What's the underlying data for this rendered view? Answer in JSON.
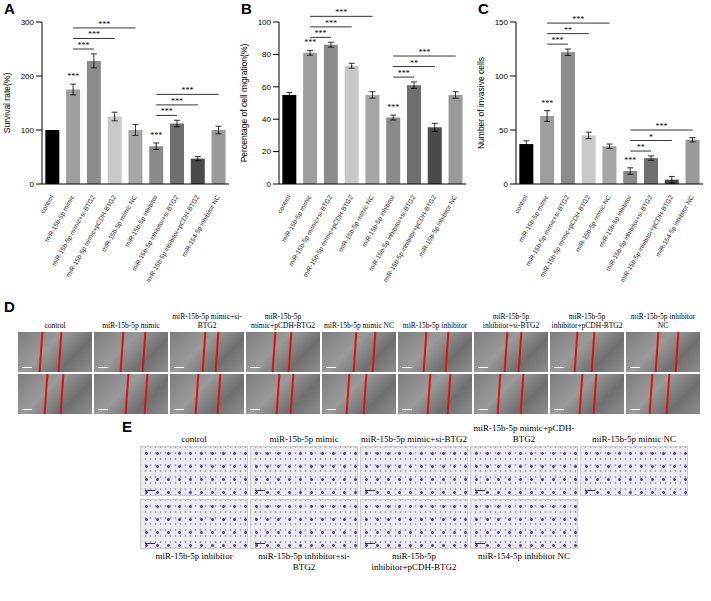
{
  "chart_data": [
    {
      "type": "bar",
      "panel": "A",
      "y_label": "Survival rate(%)",
      "categories": [
        "control",
        "miR-15b-5p mimic",
        "miR-15b-5p mimic+si-BTG2",
        "miR-15b-5p mimic+pCDH-BTG2",
        "miR-15b-5p mimic NC",
        "miR-15b-5p inhibitor",
        "miR-15b-5p inhibitor+si-BTG2",
        "miR-15b-5p inhibitor+pCDH-BTG2",
        "miR-154-5p inhibitor NC"
      ],
      "values": [
        100,
        175,
        228,
        125,
        100,
        70,
        112,
        47,
        100
      ],
      "errors": [
        0,
        10,
        13,
        8,
        10,
        6,
        6,
        4,
        7
      ],
      "colors": [
        "#000000",
        "#9e9e9e",
        "#8c8c8c",
        "#c8c8c8",
        "#a6a6a6",
        "#8a8a8a",
        "#6e6e6e",
        "#4a4a4a",
        "#9a9a9a"
      ],
      "ylim": [
        0,
        300
      ],
      "yticks": [
        0,
        100,
        200,
        300
      ],
      "annotations": [
        {
          "index": 1,
          "label": "***"
        },
        {
          "index": 5,
          "label": "***"
        }
      ],
      "comparisons": [
        {
          "from": 1,
          "to": 2,
          "label": "***"
        },
        {
          "from": 1,
          "to": 3,
          "label": "***"
        },
        {
          "from": 1,
          "to": 4,
          "label": "***"
        },
        {
          "from": 5,
          "to": 6,
          "label": "***"
        },
        {
          "from": 5,
          "to": 7,
          "label": "***"
        },
        {
          "from": 5,
          "to": 8,
          "label": "***"
        }
      ]
    },
    {
      "type": "bar",
      "panel": "B",
      "y_label": "Percentage of cell migration(%)",
      "categories": [
        "control",
        "miR-15b-5p mimic",
        "miR-15b-5p mimic+si-BTG2",
        "miR-15b-5p mimic+pCDH-BTG2",
        "miR-15b-5p mimic NC",
        "miR-15b-5p inhibitor",
        "miR-15b-5p inhibitor+si-BTG2",
        "miR-15b-5p inhibitor+pCDH-BTG2",
        "miR-15b-5p inhibitor NC"
      ],
      "values": [
        55,
        81,
        86,
        73,
        55,
        41,
        61,
        35,
        55
      ],
      "errors": [
        1.5,
        1.5,
        1.5,
        1.5,
        2,
        1.5,
        2,
        2.5,
        2
      ],
      "colors": [
        "#000000",
        "#9e9e9e",
        "#8c8c8c",
        "#c8c8c8",
        "#a6a6a6",
        "#8a8a8a",
        "#6e6e6e",
        "#4a4a4a",
        "#9a9a9a"
      ],
      "ylim": [
        0,
        100
      ],
      "yticks": [
        0,
        20,
        40,
        60,
        80,
        100
      ],
      "annotations": [
        {
          "index": 1,
          "label": "***"
        },
        {
          "index": 5,
          "label": "***"
        }
      ],
      "comparisons": [
        {
          "from": 1,
          "to": 2,
          "label": "***"
        },
        {
          "from": 1,
          "to": 3,
          "label": "***"
        },
        {
          "from": 1,
          "to": 4,
          "label": "***"
        },
        {
          "from": 5,
          "to": 6,
          "label": "***"
        },
        {
          "from": 5,
          "to": 7,
          "label": "**"
        },
        {
          "from": 5,
          "to": 8,
          "label": "***"
        }
      ]
    },
    {
      "type": "bar",
      "panel": "C",
      "y_label": "Number of invasive cells",
      "categories": [
        "control",
        "miR-15b-5p mimic",
        "miR-15b-5p mimic+si-BTG2",
        "miR-15b-5p mimic+pCDH-BTG2",
        "miR-15b-5p mimic NC",
        "miR-15b-5p inhibitor",
        "miR-15b-5p inhibitor+si-BTG2",
        "miR-15b-5p inhibitor+pCDH-BTG2",
        "miR-154-5p inhibitor NC"
      ],
      "values": [
        37,
        63,
        122,
        45,
        35,
        12,
        24,
        4,
        41
      ],
      "errors": [
        3,
        5,
        3,
        3,
        2,
        3,
        2,
        3,
        2
      ],
      "colors": [
        "#000000",
        "#9e9e9e",
        "#8c8c8c",
        "#c8c8c8",
        "#a6a6a6",
        "#8a8a8a",
        "#6e6e6e",
        "#4a4a4a",
        "#9a9a9a"
      ],
      "ylim": [
        0,
        150
      ],
      "yticks": [
        0,
        50,
        100,
        150
      ],
      "annotations": [
        {
          "index": 1,
          "label": "***"
        },
        {
          "index": 5,
          "label": "***"
        }
      ],
      "comparisons": [
        {
          "from": 1,
          "to": 2,
          "label": "***"
        },
        {
          "from": 1,
          "to": 3,
          "label": "**"
        },
        {
          "from": 1,
          "to": 4,
          "label": "***"
        },
        {
          "from": 5,
          "to": 6,
          "label": "**"
        },
        {
          "from": 5,
          "to": 7,
          "label": "*"
        },
        {
          "from": 5,
          "to": 8,
          "label": "***"
        }
      ]
    }
  ],
  "panels": {
    "D": {
      "label": "D",
      "columns": [
        "control",
        "miR-15b-5p mimic",
        "miR-15b-5p mimic+si-BTG2",
        "miR-15b-5p mimic+pCDH-BTG2",
        "miR-15b-5p mimic NC",
        "miR-15b-5p inhibitor",
        "miR-15b-5p inhibitor+si-BTG2",
        "miR-15b-5p inhibitor+pCDH-BTG2",
        "miR-15b-5p inhibitor NC"
      ]
    },
    "E": {
      "label": "E",
      "top_row": [
        "control",
        "miR-15b-5p mimic",
        "miR-15b-5p mimic+si-BTG2",
        "miR-15b-5p mimic+pCDH-BTG2",
        "miR-15b-5p mimic NC"
      ],
      "bottom_row": [
        "miR-15b-5p inhibitor",
        "miR-15b-5p inhibitor+si-BTG2",
        "miR-15b-5p inhibitor+pCDH-BTG2",
        "miR-154-5p inhibitor NC"
      ]
    }
  }
}
